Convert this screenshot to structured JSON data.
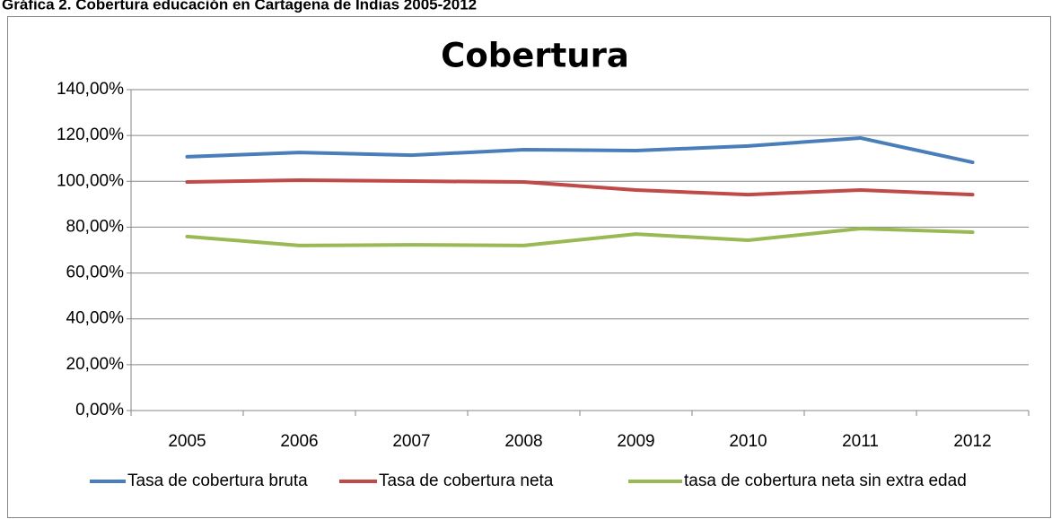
{
  "chart_data": {
    "type": "line",
    "caption": "Gráfica 2. Cobertura educación en Cartagena de Indias 2005-2012",
    "title": "Cobertura",
    "categories": [
      "2005",
      "2006",
      "2007",
      "2008",
      "2009",
      "2010",
      "2011",
      "2012"
    ],
    "series": [
      {
        "name": "Tasa de cobertura bruta",
        "color": "#4a7ebb",
        "values": [
          110.7,
          112.6,
          111.4,
          113.8,
          113.4,
          115.4,
          118.9,
          108.3
        ]
      },
      {
        "name": "Tasa de cobertura neta",
        "color": "#be4b48",
        "values": [
          99.7,
          100.5,
          100.1,
          99.7,
          96.2,
          94.2,
          96.2,
          94.2
        ]
      },
      {
        "name": "tasa de cobertura neta sin extra edad",
        "color": "#98b954",
        "values": [
          75.9,
          72.0,
          72.3,
          72.0,
          77.0,
          74.3,
          79.4,
          77.8
        ]
      }
    ],
    "ylim": [
      0,
      140
    ],
    "yticks": [
      {
        "value": 0,
        "label": "0,00%"
      },
      {
        "value": 20,
        "label": "20,00%"
      },
      {
        "value": 40,
        "label": "40,00%"
      },
      {
        "value": 60,
        "label": "60,00%"
      },
      {
        "value": 80,
        "label": "80,00%"
      },
      {
        "value": 100,
        "label": "100,00%"
      },
      {
        "value": 120,
        "label": "120,00%"
      },
      {
        "value": 140,
        "label": "140,00%"
      }
    ],
    "grid": true,
    "legend": "bottom"
  }
}
